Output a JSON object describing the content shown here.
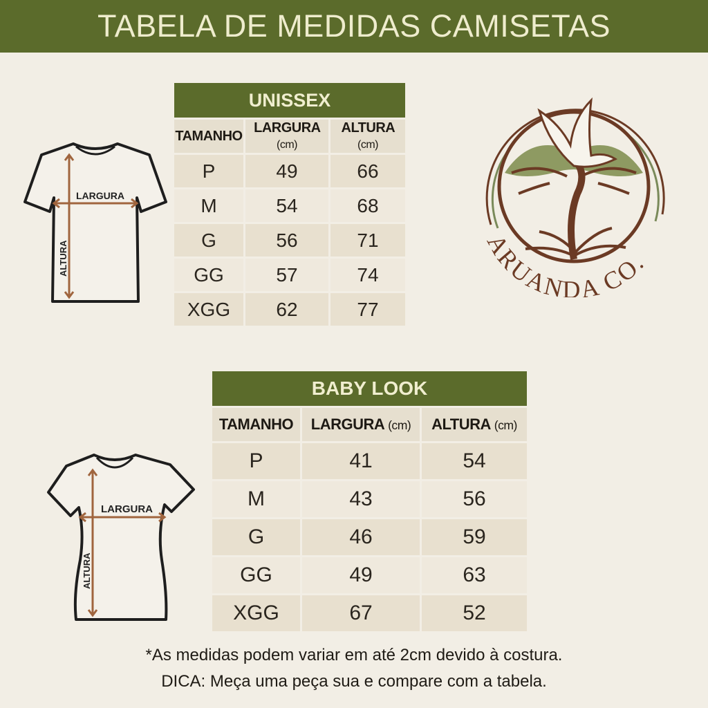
{
  "title": "TABELA DE MEDIDAS CAMISETAS",
  "unissex": {
    "title": "UNISSEX",
    "headers": {
      "size": "TAMANHO",
      "width": "LARGURA",
      "height": "ALTURA",
      "unit": "(cm)"
    },
    "rows": [
      {
        "size": "P",
        "width": "49",
        "height": "66"
      },
      {
        "size": "M",
        "width": "54",
        "height": "68"
      },
      {
        "size": "G",
        "width": "56",
        "height": "71"
      },
      {
        "size": "GG",
        "width": "57",
        "height": "74"
      },
      {
        "size": "XGG",
        "width": "62",
        "height": "77"
      }
    ]
  },
  "babylook": {
    "title": "BABY LOOK",
    "headers": {
      "size": "TAMANHO",
      "width": "LARGURA",
      "height": "ALTURA",
      "unit": "(cm)"
    },
    "rows": [
      {
        "size": "P",
        "width": "41",
        "height": "54"
      },
      {
        "size": "M",
        "width": "43",
        "height": "56"
      },
      {
        "size": "G",
        "width": "46",
        "height": "59"
      },
      {
        "size": "GG",
        "width": "49",
        "height": "63"
      },
      {
        "size": "XGG",
        "width": "67",
        "height": "52"
      }
    ]
  },
  "diagram": {
    "width_label": "LARGURA",
    "height_label": "ALTURA"
  },
  "logo": {
    "text": "ARUANDA CO."
  },
  "notes": {
    "line1": "*As medidas podem variar em até 2cm devido à costura.",
    "line2": "DICA: Meça uma peça sua e compare com a tabela."
  },
  "colors": {
    "brand_green": "#5b6b2b",
    "brown": "#6b3a24",
    "background": "#f2eee5"
  }
}
